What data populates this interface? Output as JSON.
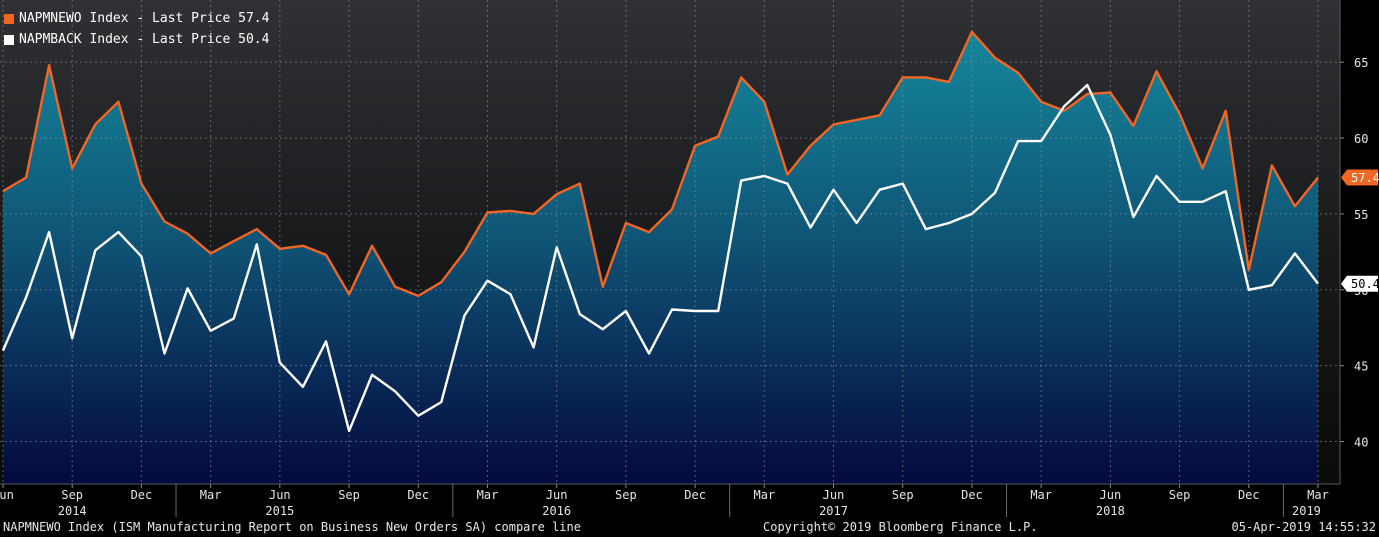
{
  "chart_data": {
    "type": "area",
    "x": [
      "2014-06",
      "2014-07",
      "2014-08",
      "2014-09",
      "2014-10",
      "2014-11",
      "2014-12",
      "2015-01",
      "2015-02",
      "2015-03",
      "2015-04",
      "2015-05",
      "2015-06",
      "2015-07",
      "2015-08",
      "2015-09",
      "2015-10",
      "2015-11",
      "2015-12",
      "2016-01",
      "2016-02",
      "2016-03",
      "2016-04",
      "2016-05",
      "2016-06",
      "2016-07",
      "2016-08",
      "2016-09",
      "2016-10",
      "2016-11",
      "2016-12",
      "2017-01",
      "2017-02",
      "2017-03",
      "2017-04",
      "2017-05",
      "2017-06",
      "2017-07",
      "2017-08",
      "2017-09",
      "2017-10",
      "2017-11",
      "2017-12",
      "2018-01",
      "2018-02",
      "2018-03",
      "2018-04",
      "2018-05",
      "2018-06",
      "2018-07",
      "2018-08",
      "2018-09",
      "2018-10",
      "2018-11",
      "2018-12",
      "2019-01",
      "2019-02",
      "2019-03"
    ],
    "series": [
      {
        "name": "NAPMNEWO Index - Last Price",
        "last_value": "57.4",
        "color": "#f26522",
        "values": [
          56.5,
          57.4,
          64.8,
          58.0,
          60.9,
          62.4,
          57.0,
          54.5,
          53.7,
          52.4,
          53.2,
          54.0,
          52.7,
          52.9,
          52.3,
          49.7,
          52.9,
          50.2,
          49.6,
          50.5,
          52.5,
          55.1,
          55.2,
          55.0,
          56.3,
          57.0,
          50.2,
          54.4,
          53.8,
          55.3,
          59.5,
          60.1,
          64.0,
          62.4,
          57.6,
          59.5,
          60.9,
          61.2,
          61.5,
          64.0,
          64.0,
          63.7,
          67.0,
          65.3,
          64.3,
          62.4,
          61.8,
          62.9,
          63.0,
          60.8,
          64.4,
          61.6,
          58.0,
          61.8,
          51.3,
          58.2,
          55.5,
          57.4
        ]
      },
      {
        "name": "NAPMBACK Index - Last Price",
        "last_value": "50.4",
        "color": "#ffffff",
        "values": [
          46.0,
          49.5,
          53.8,
          46.8,
          52.6,
          53.8,
          52.2,
          45.8,
          50.1,
          47.3,
          48.1,
          53.0,
          45.2,
          43.6,
          46.6,
          40.7,
          44.4,
          43.3,
          41.7,
          42.6,
          48.3,
          50.6,
          49.7,
          46.2,
          52.8,
          48.4,
          47.4,
          48.6,
          45.8,
          48.7,
          48.6,
          48.6,
          57.2,
          57.5,
          57.0,
          54.1,
          56.6,
          54.4,
          56.6,
          57.0,
          54.0,
          54.4,
          55.0,
          56.4,
          59.8,
          59.8,
          62.1,
          63.5,
          60.2,
          54.8,
          57.5,
          55.8,
          55.8,
          56.5,
          50.0,
          50.3,
          52.4,
          50.4
        ]
      }
    ],
    "yticks": [
      40,
      45,
      50,
      55,
      60,
      65
    ],
    "ylim": [
      37.2,
      69.1
    ],
    "x_tick_labels": [
      {
        "i": 0,
        "label": "Jun"
      },
      {
        "i": 3,
        "label": "Sep"
      },
      {
        "i": 6,
        "label": "Dec"
      },
      {
        "i": 9,
        "label": "Mar"
      },
      {
        "i": 12,
        "label": "Jun"
      },
      {
        "i": 15,
        "label": "Sep"
      },
      {
        "i": 18,
        "label": "Dec"
      },
      {
        "i": 21,
        "label": "Mar"
      },
      {
        "i": 24,
        "label": "Jun"
      },
      {
        "i": 27,
        "label": "Sep"
      },
      {
        "i": 30,
        "label": "Dec"
      },
      {
        "i": 33,
        "label": "Mar"
      },
      {
        "i": 36,
        "label": "Jun"
      },
      {
        "i": 39,
        "label": "Sep"
      },
      {
        "i": 42,
        "label": "Dec"
      },
      {
        "i": 45,
        "label": "Mar"
      },
      {
        "i": 48,
        "label": "Jun"
      },
      {
        "i": 51,
        "label": "Sep"
      },
      {
        "i": 54,
        "label": "Dec"
      },
      {
        "i": 57,
        "label": "Mar"
      }
    ],
    "year_labels": [
      {
        "i": 3,
        "label": "2014"
      },
      {
        "i": 12,
        "label": "2015"
      },
      {
        "i": 24,
        "label": "2016"
      },
      {
        "i": 36,
        "label": "2017"
      },
      {
        "i": 48,
        "label": "2018"
      },
      {
        "i": 56.5,
        "label": "2019"
      }
    ],
    "year_dividers": [
      7.5,
      19.5,
      31.5,
      43.5,
      55.5
    ],
    "grid": true,
    "legend_position": "top-left"
  },
  "footer": {
    "description": "NAPMNEWO Index (ISM Manufacturing Report on Business New Orders SA) compare line",
    "copyright": "Copyright© 2019 Bloomberg Finance L.P.",
    "timestamp": "05-Apr-2019 14:55:32"
  }
}
